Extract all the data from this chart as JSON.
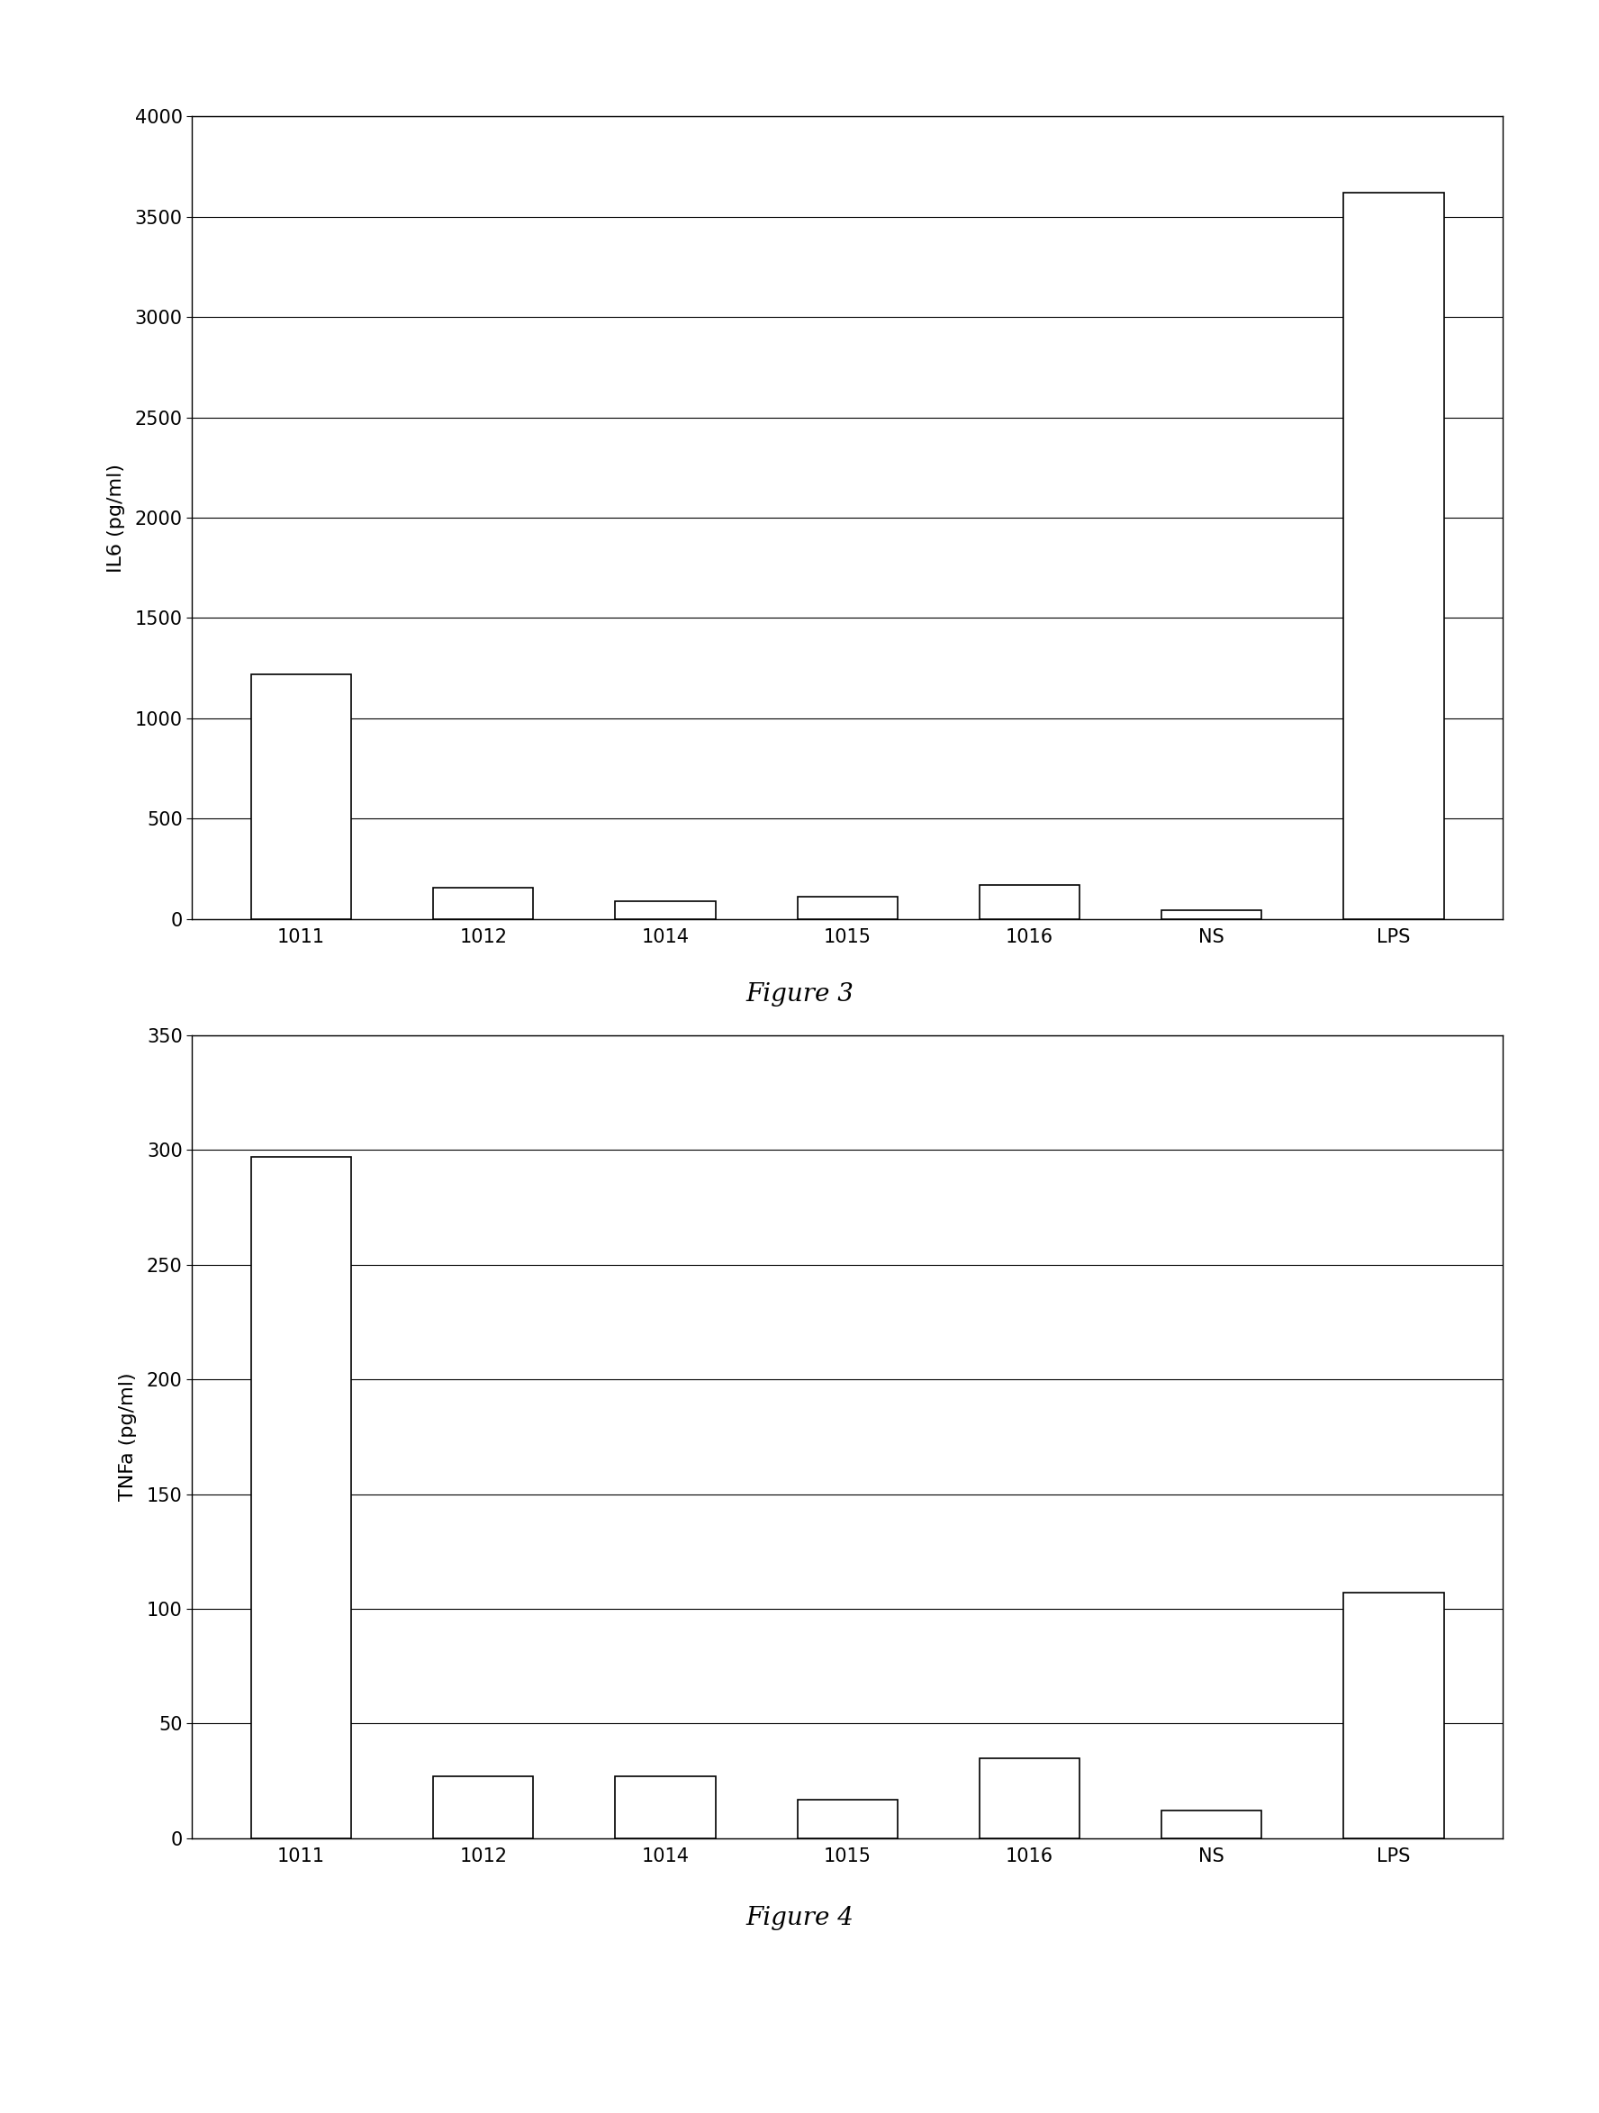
{
  "fig3": {
    "categories": [
      "1011",
      "1012",
      "1014",
      "1015",
      "1016",
      "NS",
      "LPS"
    ],
    "values": [
      1220,
      155,
      90,
      110,
      170,
      45,
      3620
    ],
    "ylabel": "IL6 (pg/ml)",
    "title": "Figure 3",
    "ylim": [
      0,
      4000
    ],
    "yticks": [
      0,
      500,
      1000,
      1500,
      2000,
      2500,
      3000,
      3500,
      4000
    ]
  },
  "fig4": {
    "categories": [
      "1011",
      "1012",
      "1014",
      "1015",
      "1016",
      "NS",
      "LPS"
    ],
    "values": [
      297,
      27,
      27,
      17,
      35,
      12,
      107
    ],
    "ylabel": "TNFa (pg/ml)",
    "title": "Figure 4",
    "ylim": [
      0,
      350
    ],
    "yticks": [
      0,
      50,
      100,
      150,
      200,
      250,
      300,
      350
    ]
  },
  "bar_color": "#ffffff",
  "bar_edgecolor": "#000000",
  "bar_width": 0.55,
  "background_color": "#ffffff",
  "grid_color": "#000000",
  "title_fontsize": 20,
  "label_fontsize": 16,
  "tick_fontsize": 15,
  "title_fontstyle": "italic"
}
